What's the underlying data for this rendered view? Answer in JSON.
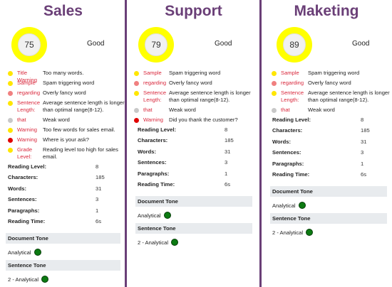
{
  "colors": {
    "title": "#6a3f77",
    "gauge": "#ffff00",
    "issue_type": "#d9283c",
    "tone_dot": "#0c7a12",
    "section_bg": "#e8ebee"
  },
  "columns": [
    {
      "title": "Sales",
      "score": "75",
      "score_level": 0.75,
      "rating": "Good",
      "issues": [
        {
          "type": "Title Warning",
          "message": "Too many words.",
          "dot_color": "#ffe600"
        },
        {
          "type": "Sample",
          "message": "Spam triggering word",
          "dot_color": "#ffe600"
        },
        {
          "type": "regarding",
          "message": "Overly fancy word",
          "dot_color": "#f08080"
        },
        {
          "type": "Sentence Length:",
          "message": "Average sentence length is longer than optimal range(8-12).",
          "dot_color": "#ffe600"
        },
        {
          "type": "that",
          "message": "Weak word",
          "dot_color": "#c8c8c8"
        },
        {
          "type": "Warning",
          "message": "Too few words for sales email.",
          "dot_color": "#ffe600"
        },
        {
          "type": "Warning",
          "message": "Where is your ask?",
          "dot_color": "#e00000"
        },
        {
          "type": "Grade Level:",
          "message": "Reading level too high for sales email.",
          "dot_color": "#ffe600"
        }
      ],
      "stats": [
        {
          "label": "Reading Level:",
          "value": "8"
        },
        {
          "label": "Characters:",
          "value": "185"
        },
        {
          "label": "Words:",
          "value": "31"
        },
        {
          "label": "Sentences:",
          "value": "3"
        },
        {
          "label": "Paragraphs:",
          "value": "1"
        },
        {
          "label": "Reading Time:",
          "value": "6s"
        }
      ],
      "document_tone": {
        "heading": "Document Tone",
        "value": "Analytical"
      },
      "sentence_tone": {
        "heading": "Sentence Tone",
        "value": "2 - Analytical"
      }
    },
    {
      "title": "Support",
      "score": "79",
      "score_level": 0.79,
      "rating": "Good",
      "issues": [
        {
          "type": "Sample",
          "message": "Spam triggering word",
          "dot_color": "#ffe600"
        },
        {
          "type": "regarding",
          "message": "Overly fancy word",
          "dot_color": "#f08080"
        },
        {
          "type": "Sentence Length:",
          "message": "Average sentence length is longer than optimal range(8-12).",
          "dot_color": "#ffe600"
        },
        {
          "type": "that",
          "message": "Weak word",
          "dot_color": "#c8c8c8"
        },
        {
          "type": "Warning",
          "message": "Did you thank the customer?",
          "dot_color": "#e00000"
        }
      ],
      "stats": [
        {
          "label": "Reading Level:",
          "value": "8"
        },
        {
          "label": "Characters:",
          "value": "185"
        },
        {
          "label": "Words:",
          "value": "31"
        },
        {
          "label": "Sentences:",
          "value": "3"
        },
        {
          "label": "Paragraphs:",
          "value": "1"
        },
        {
          "label": "Reading Time:",
          "value": "6s"
        }
      ],
      "document_tone": {
        "heading": "Document Tone",
        "value": "Analytical"
      },
      "sentence_tone": {
        "heading": "Sentence Tone",
        "value": "2 - Analytical"
      }
    },
    {
      "title": "Maketing",
      "score": "89",
      "score_level": 0.89,
      "rating": "Good",
      "issues": [
        {
          "type": "Sample",
          "message": "Spam triggering word",
          "dot_color": "#ffe600"
        },
        {
          "type": "regarding",
          "message": "Overly fancy word",
          "dot_color": "#f08080"
        },
        {
          "type": "Sentence Length:",
          "message": "Average sentence length is longer than optimal range(8-12).",
          "dot_color": "#ffe600"
        },
        {
          "type": "that",
          "message": "Weak word",
          "dot_color": "#c8c8c8"
        }
      ],
      "stats": [
        {
          "label": "Reading Level:",
          "value": "8"
        },
        {
          "label": "Characters:",
          "value": "185"
        },
        {
          "label": "Words:",
          "value": "31"
        },
        {
          "label": "Sentences:",
          "value": "3"
        },
        {
          "label": "Paragraphs:",
          "value": "1"
        },
        {
          "label": "Reading Time:",
          "value": "6s"
        }
      ],
      "document_tone": {
        "heading": "Document Tone",
        "value": "Analytical"
      },
      "sentence_tone": {
        "heading": "Sentence Tone",
        "value": "2 - Analytical"
      }
    }
  ]
}
